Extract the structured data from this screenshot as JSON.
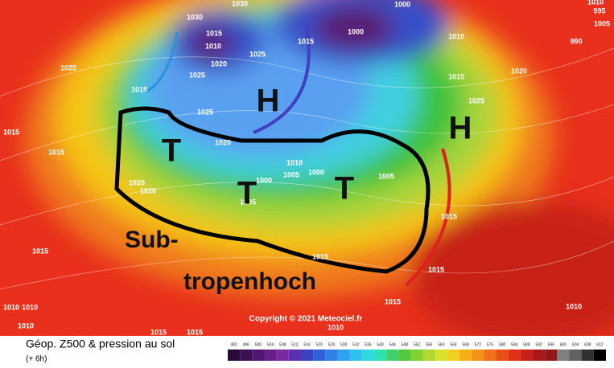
{
  "map": {
    "isobar_labels": [
      "1030",
      "1030",
      "1015",
      "1010",
      "1020",
      "1025",
      "1025",
      "1015",
      "1000",
      "1000",
      "1010",
      "1015",
      "1025",
      "1020",
      "990",
      "995",
      "1010",
      "1005",
      "1025",
      "1015",
      "1015",
      "1025",
      "1020",
      "1010",
      "1005",
      "1000",
      "1000",
      "1005",
      "1020",
      "1020",
      "1015",
      "1015",
      "1015",
      "1015",
      "1015",
      "1010",
      "1010",
      "1010",
      "1015",
      "1015",
      "1010",
      "1010",
      "1005",
      "1015"
    ],
    "annotations": {
      "high_north": "H",
      "high_east": "H",
      "low_west": "T",
      "low_center": "T",
      "low_east": "T",
      "subtropical_line1": "Sub-",
      "subtropical_line2": "tropenhoch"
    },
    "copyright": "Copyright © 2021 Meteociel.fr"
  },
  "footer": {
    "title": "Géop. Z500 & pression au sol",
    "lead_time": "(+ 6h)",
    "scale_labels": [
      "492",
      "496",
      "500",
      "504",
      "508",
      "512",
      "516",
      "520",
      "524",
      "528",
      "532",
      "536",
      "540",
      "544",
      "548",
      "552",
      "556",
      "560",
      "564",
      "568",
      "572",
      "576",
      "580",
      "584",
      "588",
      "592",
      "596",
      "600",
      "604",
      "608",
      "612"
    ]
  }
}
